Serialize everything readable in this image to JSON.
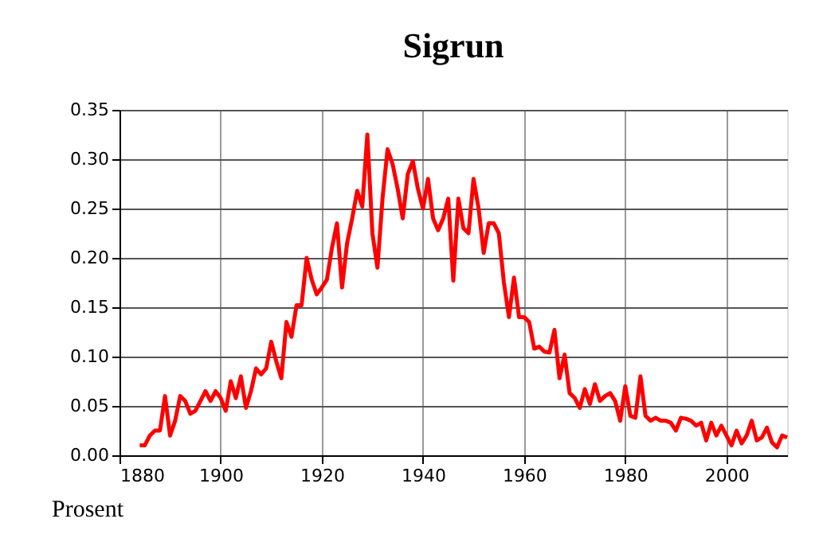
{
  "chart_data": {
    "type": "line",
    "title": "Sigrun",
    "ylabel": "Prosent",
    "x": [
      1884,
      1885,
      1886,
      1887,
      1888,
      1889,
      1890,
      1891,
      1892,
      1893,
      1894,
      1895,
      1896,
      1897,
      1898,
      1899,
      1900,
      1901,
      1902,
      1903,
      1904,
      1905,
      1906,
      1907,
      1908,
      1909,
      1910,
      1911,
      1912,
      1913,
      1914,
      1915,
      1916,
      1917,
      1918,
      1919,
      1920,
      1921,
      1922,
      1923,
      1924,
      1925,
      1926,
      1927,
      1928,
      1929,
      1930,
      1931,
      1932,
      1933,
      1934,
      1935,
      1936,
      1937,
      1938,
      1939,
      1940,
      1941,
      1942,
      1943,
      1944,
      1945,
      1946,
      1947,
      1948,
      1949,
      1950,
      1951,
      1952,
      1953,
      1954,
      1955,
      1956,
      1957,
      1958,
      1959,
      1960,
      1961,
      1962,
      1963,
      1964,
      1965,
      1966,
      1967,
      1968,
      1969,
      1970,
      1971,
      1972,
      1973,
      1974,
      1975,
      1976,
      1977,
      1978,
      1979,
      1980,
      1981,
      1982,
      1983,
      1984,
      1985,
      1986,
      1987,
      1988,
      1989,
      1990,
      1991,
      1992,
      1993,
      1994,
      1995,
      1996,
      1997,
      1998,
      1999,
      2000,
      2001,
      2002,
      2003,
      2004,
      2005,
      2006,
      2007,
      2008,
      2009,
      2010,
      2011,
      2012
    ],
    "series": [
      {
        "color": "#ff0000",
        "values": [
          0.01,
          0.01,
          0.02,
          0.025,
          0.025,
          0.06,
          0.02,
          0.035,
          0.06,
          0.055,
          0.042,
          0.045,
          0.055,
          0.065,
          0.055,
          0.065,
          0.058,
          0.045,
          0.075,
          0.058,
          0.08,
          0.048,
          0.065,
          0.088,
          0.082,
          0.088,
          0.115,
          0.095,
          0.078,
          0.135,
          0.12,
          0.152,
          0.152,
          0.2,
          0.178,
          0.163,
          0.17,
          0.178,
          0.21,
          0.235,
          0.17,
          0.215,
          0.24,
          0.268,
          0.252,
          0.325,
          0.225,
          0.19,
          0.26,
          0.31,
          0.295,
          0.27,
          0.24,
          0.285,
          0.298,
          0.27,
          0.25,
          0.28,
          0.24,
          0.228,
          0.24,
          0.26,
          0.177,
          0.26,
          0.23,
          0.225,
          0.28,
          0.25,
          0.205,
          0.235,
          0.235,
          0.225,
          0.175,
          0.14,
          0.18,
          0.14,
          0.14,
          0.135,
          0.108,
          0.11,
          0.105,
          0.104,
          0.127,
          0.078,
          0.102,
          0.063,
          0.058,
          0.048,
          0.067,
          0.052,
          0.072,
          0.055,
          0.06,
          0.063,
          0.055,
          0.035,
          0.07,
          0.04,
          0.038,
          0.08,
          0.04,
          0.035,
          0.038,
          0.035,
          0.035,
          0.033,
          0.025,
          0.038,
          0.037,
          0.035,
          0.03,
          0.033,
          0.015,
          0.033,
          0.02,
          0.03,
          0.02,
          0.01,
          0.025,
          0.012,
          0.02,
          0.035,
          0.015,
          0.018,
          0.028,
          0.013,
          0.008,
          0.02,
          0.018
        ]
      }
    ],
    "xlim": [
      1880,
      2012
    ],
    "xticks": [
      1880,
      1900,
      1920,
      1940,
      1960,
      1980,
      2000
    ],
    "ylim": [
      0,
      0.35
    ],
    "yticks": [
      {
        "value": 0,
        "label": "0.00"
      },
      0.05,
      {
        "value": 0.1,
        "label": "0.10"
      },
      0.15,
      {
        "value": 0.2,
        "label": "0.20"
      },
      0.25,
      {
        "value": 0.3,
        "label": "0.30"
      },
      0.35
    ],
    "grid": true,
    "line_style": "solid",
    "marker": "none"
  }
}
